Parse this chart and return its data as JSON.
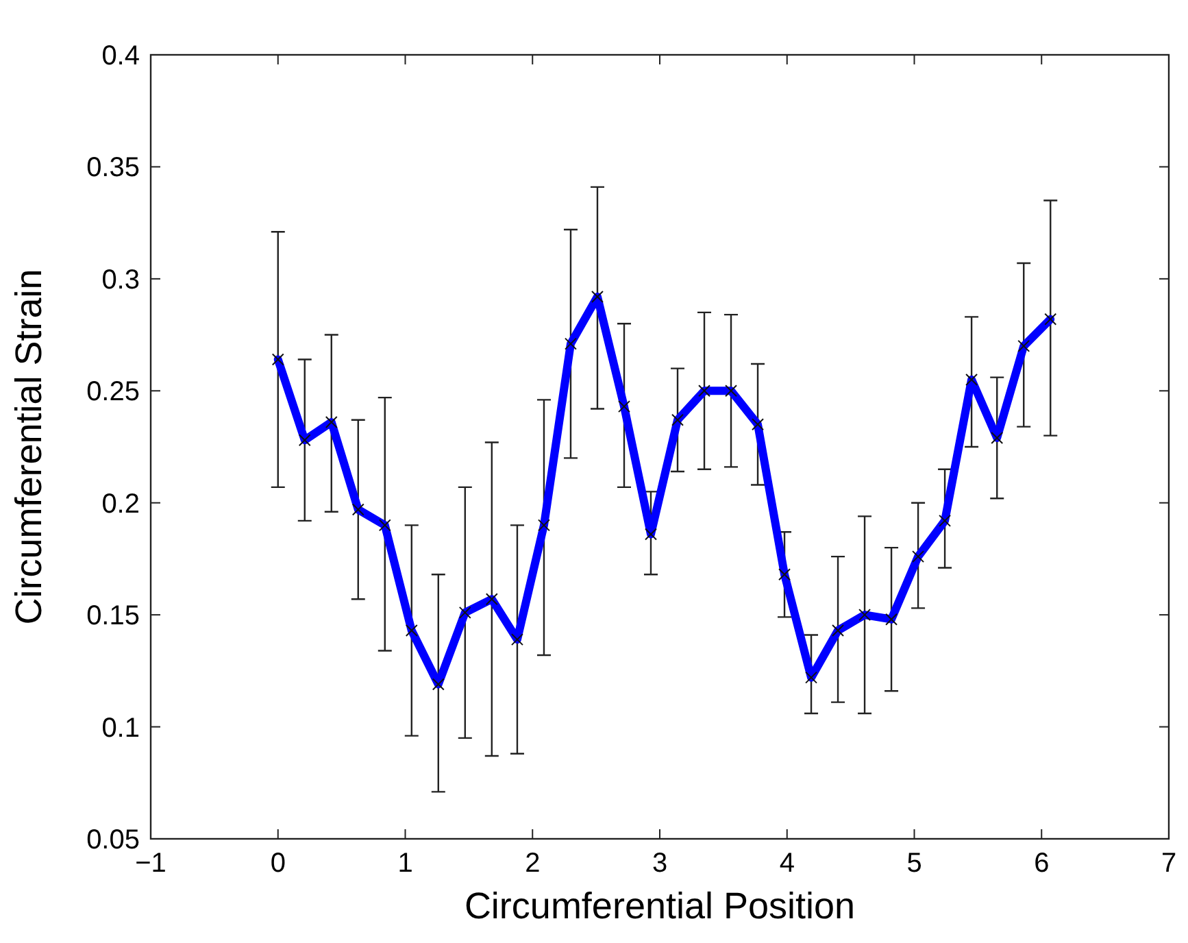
{
  "chart_data": {
    "type": "line",
    "xlabel": "Circumferential Position",
    "ylabel": "Circumferential Strain",
    "xlim": [
      -1,
      7
    ],
    "xticks": [
      {
        "value": -1,
        "label": "−1"
      },
      0,
      1,
      2,
      3,
      4,
      5,
      6,
      7
    ],
    "ylim": [
      0.05,
      0.4
    ],
    "yticks": [
      0.05,
      0.1,
      0.15,
      0.2,
      0.25,
      0.3,
      0.35,
      0.4
    ],
    "grid": false,
    "marker": "cross",
    "line_style": "solid",
    "series": [
      {
        "color": "#0000ff",
        "x": [
          0,
          0.21,
          0.42,
          0.63,
          0.84,
          1.05,
          1.26,
          1.47,
          1.68,
          1.88,
          2.09,
          2.3,
          2.51,
          2.72,
          2.93,
          3.14,
          3.35,
          3.56,
          3.77,
          3.98,
          4.19,
          4.4,
          4.61,
          4.82,
          5.03,
          5.24,
          5.45,
          5.65,
          5.86,
          6.07
        ],
        "values": [
          0.264,
          0.228,
          0.236,
          0.197,
          0.19,
          0.143,
          0.119,
          0.151,
          0.157,
          0.139,
          0.19,
          0.271,
          0.292,
          0.243,
          0.186,
          0.237,
          0.25,
          0.25,
          0.235,
          0.168,
          0.122,
          0.143,
          0.15,
          0.148,
          0.176,
          0.192,
          0.255,
          0.229,
          0.27,
          0.282
        ],
        "errors": [
          [
            0.207,
            0.321
          ],
          [
            0.192,
            0.264
          ],
          [
            0.196,
            0.275
          ],
          [
            0.157,
            0.237
          ],
          [
            0.134,
            0.247
          ],
          [
            0.096,
            0.19
          ],
          [
            0.071,
            0.168
          ],
          [
            0.095,
            0.207
          ],
          [
            0.087,
            0.227
          ],
          [
            0.088,
            0.19
          ],
          [
            0.132,
            0.246
          ],
          [
            0.22,
            0.322
          ],
          [
            0.242,
            0.341
          ],
          [
            0.207,
            0.28
          ],
          [
            0.168,
            0.205
          ],
          [
            0.214,
            0.26
          ],
          [
            0.215,
            0.285
          ],
          [
            0.216,
            0.284
          ],
          [
            0.208,
            0.262
          ],
          [
            0.149,
            0.187
          ],
          [
            0.106,
            0.141
          ],
          [
            0.111,
            0.176
          ],
          [
            0.106,
            0.194
          ],
          [
            0.116,
            0.18
          ],
          [
            0.153,
            0.2
          ],
          [
            0.171,
            0.215
          ],
          [
            0.225,
            0.283
          ],
          [
            0.202,
            0.256
          ],
          [
            0.234,
            0.307
          ],
          [
            0.23,
            0.335
          ]
        ]
      }
    ]
  }
}
